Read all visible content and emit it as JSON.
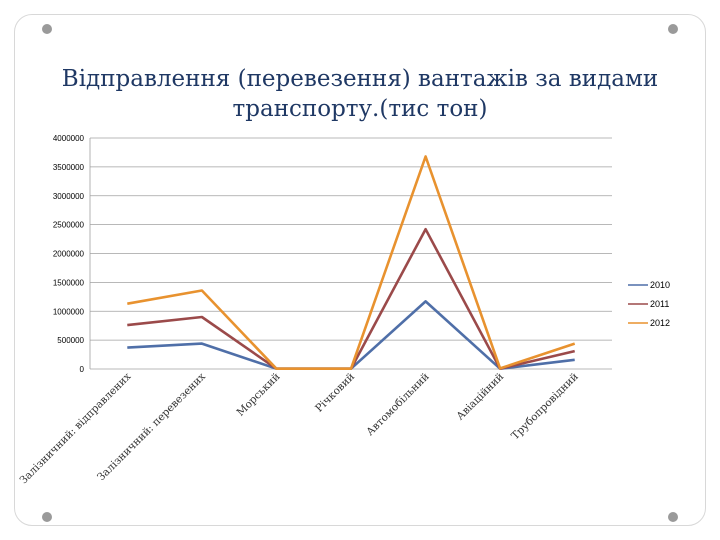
{
  "slide": {
    "title": "Відправлення (перевезення)   вантажів за видами транспорту.(тис тон)"
  },
  "colors": {
    "series_2010": "#4f6fa8",
    "series_2011": "#9b4a4a",
    "series_2012": "#e8922f",
    "grid": "#a0a0a0",
    "frame_dot": "#9a9a9a"
  },
  "chart_data": {
    "type": "line",
    "title": "Відправлення (перевезення)   вантажів за видами транспорту.(тис тон)",
    "xlabel": "",
    "ylabel": "",
    "categories": [
      "Залізничний: відправлених",
      "Залізничний: перевезених",
      "Морський",
      "Річковий",
      "Автомобільний",
      "Авіаційний",
      "Трубопровідний"
    ],
    "series": [
      {
        "name": "2010",
        "values": [
          370000,
          440000,
          5000,
          5000,
          1170000,
          5000,
          160000
        ]
      },
      {
        "name": "2011",
        "values": [
          760000,
          900000,
          5000,
          5000,
          2420000,
          5000,
          310000
        ]
      },
      {
        "name": "2012",
        "values": [
          1130000,
          1360000,
          5000,
          5000,
          3680000,
          10000,
          440000
        ]
      }
    ],
    "ylim": [
      0,
      4000000
    ],
    "yticks": [
      0,
      500000,
      1000000,
      1500000,
      2000000,
      2500000,
      3000000,
      3500000,
      4000000
    ],
    "ytick_labels": [
      "0",
      "500000",
      "1000000",
      "1500000",
      "2000000",
      "2500000",
      "3000000",
      "3500000",
      "4000000"
    ],
    "grid": true,
    "legend": "right"
  }
}
